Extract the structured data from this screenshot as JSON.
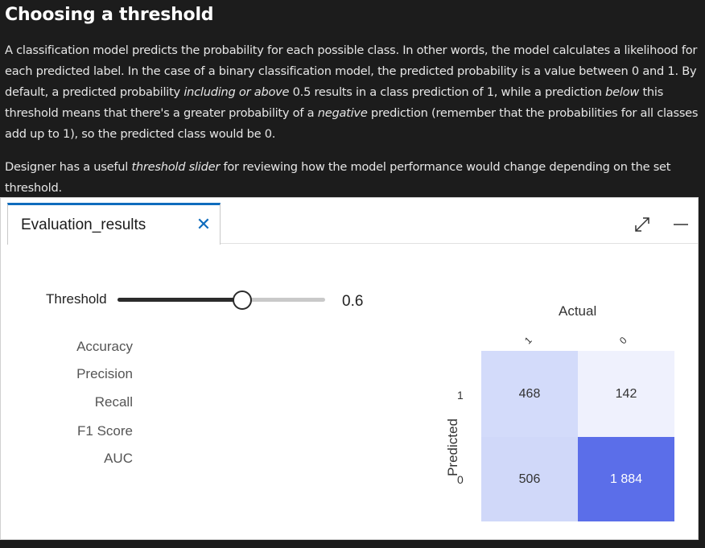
{
  "article": {
    "heading": "Choosing a threshold",
    "p1": {
      "s1": "A classification model predicts the probability for each possible class. In other words, the model calculates a likelihood for each predicted label. In the case of a binary classification model, the predicted probability is a value between 0 and 1. By default, a predicted probability ",
      "em1": "including or above",
      "s2": " 0.5 results in a class prediction of 1, while a prediction ",
      "em2": "below",
      "s3": " this threshold means that there's a greater probability of a ",
      "em3": "negative",
      "s4": " prediction (remember that the probabilities for all classes add up to 1), so the predicted class would be 0."
    },
    "p2": {
      "s1": "Designer has a useful ",
      "em1": "threshold slider",
      "s2": " for reviewing how the model performance would change depending on the set threshold."
    }
  },
  "panel": {
    "tab_label": "Evaluation_results",
    "close_icon": "close-icon",
    "expand_icon": "expand-icon",
    "minimize_icon": "minimize-icon",
    "accent_color": "#0f6cbd"
  },
  "threshold": {
    "label": "Threshold",
    "value": "0.6",
    "fraction": 0.6
  },
  "metrics": [
    "Accuracy",
    "Precision",
    "Recall",
    "F1 Score",
    "AUC"
  ],
  "confusion_matrix": {
    "actual_label": "Actual",
    "predicted_label": "Predicted",
    "columns": [
      "1",
      "0"
    ],
    "rows": [
      "1",
      "0"
    ],
    "cells": [
      [
        {
          "value": "468",
          "color": "#d3dbfa"
        },
        {
          "value": "142",
          "color": "#eff1fd"
        }
      ],
      [
        {
          "value": "506",
          "color": "#d0d8f9"
        },
        {
          "value": "1 884",
          "color": "#5b6ee9"
        }
      ]
    ]
  }
}
